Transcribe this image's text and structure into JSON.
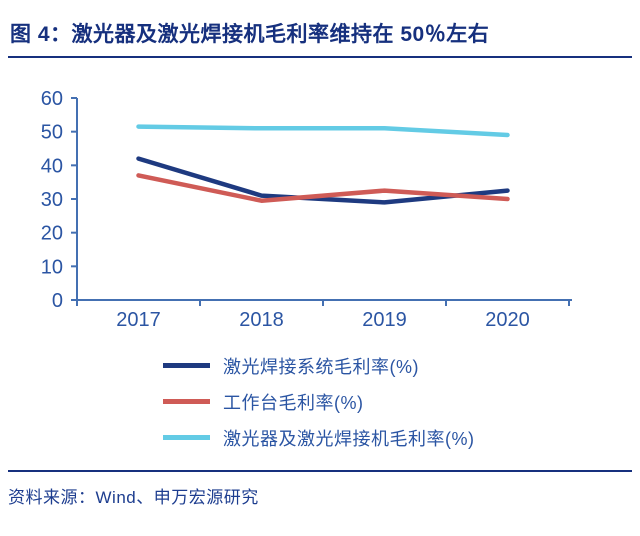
{
  "figure": {
    "title": "图 4：激光器及激光焊接机毛利率维持在 50％左右",
    "source": "资料来源：Wind、申万宏源研究"
  },
  "colors": {
    "title_navy": "#16307e",
    "axis_blue": "#4470b2",
    "tick_label_blue": "#2b55a3",
    "source_navy": "#1d3d8f"
  },
  "chart_data": {
    "type": "line",
    "categories": [
      "2017",
      "2018",
      "2019",
      "2020"
    ],
    "series": [
      {
        "name": "激光焊接系统毛利率(%)",
        "color": "#1e3a80",
        "values": [
          42,
          31,
          29,
          32.5
        ]
      },
      {
        "name": "工作台毛利率(%)",
        "color": "#cf5b56",
        "values": [
          37,
          29.5,
          32.5,
          30
        ]
      },
      {
        "name": "激光器及激光焊接机毛利率(%)",
        "color": "#63cbe5",
        "values": [
          51.5,
          51,
          51,
          49
        ]
      }
    ],
    "title": "激光器及激光焊接机毛利率维持在50％左右",
    "xlabel": "",
    "ylabel": "",
    "ylim": [
      0,
      60
    ],
    "ytick_step": 10,
    "grid": false,
    "legend_position": "bottom-left"
  }
}
